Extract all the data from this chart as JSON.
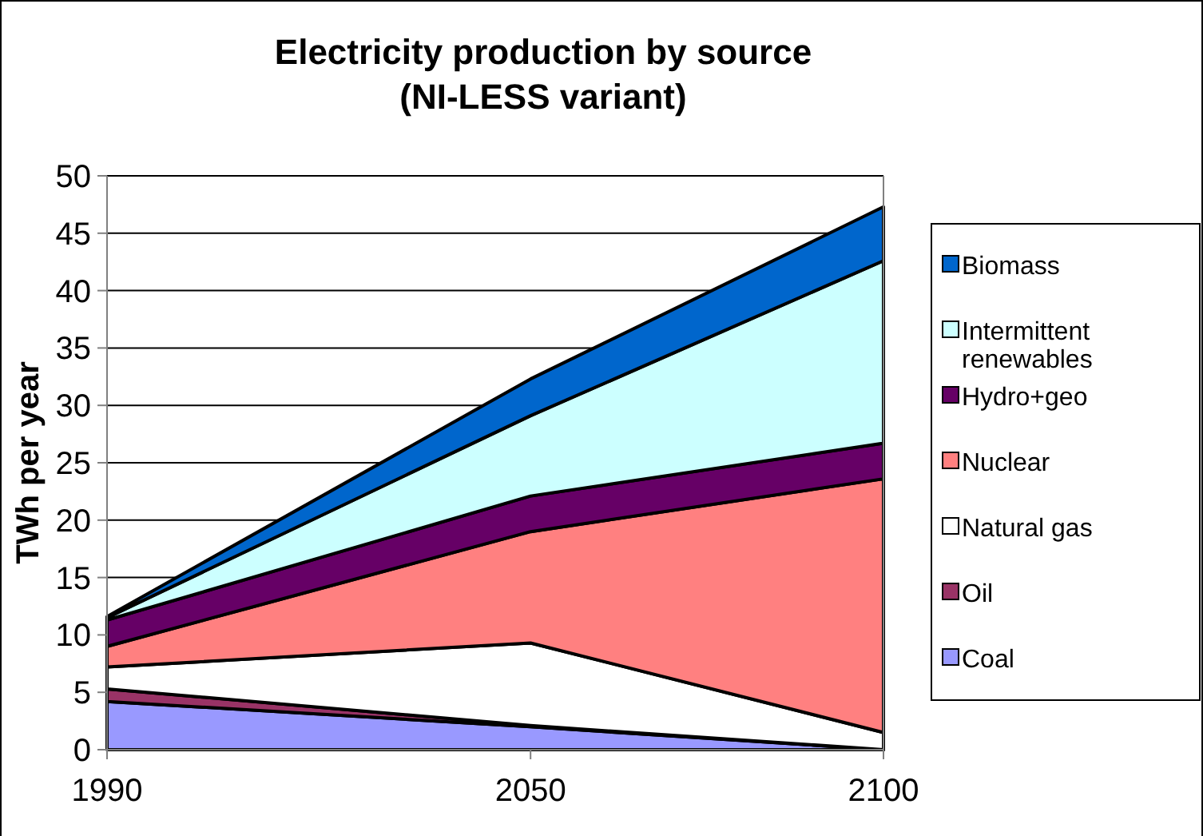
{
  "chart_data": {
    "type": "area",
    "stacked": true,
    "title": "Electricity production by source\n(NI-LESS variant)",
    "ylabel": "TWh per year",
    "x": [
      1990,
      2050,
      2100
    ],
    "xlim": [
      1990,
      2100
    ],
    "xticks": [
      1990,
      2050,
      2100
    ],
    "ylim": [
      0,
      50
    ],
    "yticks": [
      0,
      5,
      10,
      15,
      20,
      25,
      30,
      35,
      40,
      45,
      50
    ],
    "grid": "y",
    "legend": "right",
    "series": [
      {
        "name": "Coal",
        "color": "#9999ff",
        "values": [
          4.2,
          2.0,
          0
        ]
      },
      {
        "name": "Oil",
        "color": "#993366",
        "values": [
          1.1,
          0.1,
          0
        ]
      },
      {
        "name": "Natural gas",
        "color": "#ffffff",
        "values": [
          1.9,
          7.2,
          1.5
        ]
      },
      {
        "name": "Nuclear",
        "color": "#ff8080",
        "values": [
          1.8,
          9.7,
          22.1
        ]
      },
      {
        "name": "Hydro+geo",
        "color": "#660066",
        "values": [
          2.3,
          3.1,
          3.1
        ]
      },
      {
        "name": "Intermittent renewables",
        "color": "#ccffff",
        "values": [
          0.2,
          7.0,
          15.9
        ]
      },
      {
        "name": "Biomass",
        "color": "#0066cc",
        "values": [
          0.1,
          3.2,
          4.7
        ]
      }
    ]
  }
}
